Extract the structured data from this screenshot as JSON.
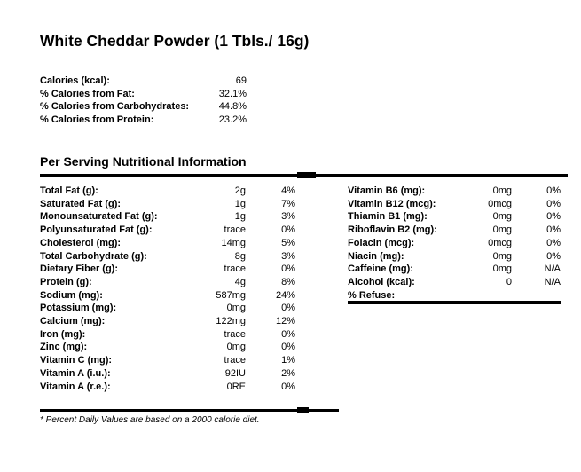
{
  "title": "White Cheddar Powder (1 Tbls./ 16g)",
  "section_header": "Per Serving Nutritional Information",
  "footnote": "* Percent Daily Values are based on a 2000 calorie diet.",
  "colors": {
    "text": "#000000",
    "background": "#ffffff",
    "rule": "#000000"
  },
  "calories_summary": [
    {
      "label": "Calories (kcal):",
      "value": "69"
    },
    {
      "label": "% Calories from Fat:",
      "value": "32.1%"
    },
    {
      "label": "% Calories from Carbohydrates:",
      "value": "44.8%"
    },
    {
      "label": "% Calories from Protein:",
      "value": "23.2%"
    }
  ],
  "nutrients_left": [
    {
      "label": "Total Fat (g):",
      "amount": "2g",
      "dv": "4%"
    },
    {
      "label": "Saturated Fat (g):",
      "amount": "1g",
      "dv": "7%"
    },
    {
      "label": "Monounsaturated Fat (g):",
      "amount": "1g",
      "dv": "3%"
    },
    {
      "label": "Polyunsaturated Fat (g):",
      "amount": "trace",
      "dv": "0%"
    },
    {
      "label": "Cholesterol (mg):",
      "amount": "14mg",
      "dv": "5%"
    },
    {
      "label": "Total Carbohydrate (g):",
      "amount": "8g",
      "dv": "3%"
    },
    {
      "label": "Dietary Fiber (g):",
      "amount": "trace",
      "dv": "0%"
    },
    {
      "label": "Protein (g):",
      "amount": "4g",
      "dv": "8%"
    },
    {
      "label": "Sodium (mg):",
      "amount": "587mg",
      "dv": "24%"
    },
    {
      "label": "Potassium (mg):",
      "amount": "0mg",
      "dv": "0%"
    },
    {
      "label": "Calcium (mg):",
      "amount": "122mg",
      "dv": "12%"
    },
    {
      "label": "Iron (mg):",
      "amount": "trace",
      "dv": "0%"
    },
    {
      "label": "Zinc (mg):",
      "amount": "0mg",
      "dv": "0%"
    },
    {
      "label": "Vitamin C (mg):",
      "amount": "trace",
      "dv": "1%"
    },
    {
      "label": "Vitamin A (i.u.):",
      "amount": "92IU",
      "dv": "2%"
    },
    {
      "label": "Vitamin A (r.e.):",
      "amount": "0RE",
      "dv": "0%"
    }
  ],
  "nutrients_right": [
    {
      "label": "Vitamin B6 (mg):",
      "amount": "0mg",
      "dv": "0%"
    },
    {
      "label": "Vitamin B12 (mcg):",
      "amount": "0mcg",
      "dv": "0%"
    },
    {
      "label": "Thiamin B1 (mg):",
      "amount": "0mg",
      "dv": "0%"
    },
    {
      "label": "Riboflavin B2 (mg):",
      "amount": "0mg",
      "dv": "0%"
    },
    {
      "label": "Folacin (mcg):",
      "amount": "0mcg",
      "dv": "0%"
    },
    {
      "label": "Niacin (mg):",
      "amount": "0mg",
      "dv": "0%"
    },
    {
      "label": "Caffeine (mg):",
      "amount": "0mg",
      "dv": "N/A"
    },
    {
      "label": "Alcohol (kcal):",
      "amount": "0",
      "dv": "N/A"
    },
    {
      "label": "% Refuse:",
      "amount": "",
      "dv": ""
    }
  ]
}
